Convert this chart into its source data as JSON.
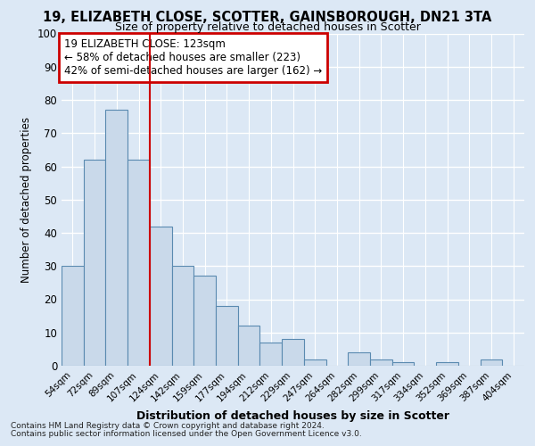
{
  "title1": "19, ELIZABETH CLOSE, SCOTTER, GAINSBOROUGH, DN21 3TA",
  "title2": "Size of property relative to detached houses in Scotter",
  "xlabel": "Distribution of detached houses by size in Scotter",
  "ylabel": "Number of detached properties",
  "footer1": "Contains HM Land Registry data © Crown copyright and database right 2024.",
  "footer2": "Contains public sector information licensed under the Open Government Licence v3.0.",
  "annotation_line1": "19 ELIZABETH CLOSE: 123sqm",
  "annotation_line2": "← 58% of detached houses are smaller (223)",
  "annotation_line3": "42% of semi-detached houses are larger (162) →",
  "bar_labels": [
    "54sqm",
    "72sqm",
    "89sqm",
    "107sqm",
    "124sqm",
    "142sqm",
    "159sqm",
    "177sqm",
    "194sqm",
    "212sqm",
    "229sqm",
    "247sqm",
    "264sqm",
    "282sqm",
    "299sqm",
    "317sqm",
    "334sqm",
    "352sqm",
    "369sqm",
    "387sqm",
    "404sqm"
  ],
  "bar_values": [
    30,
    62,
    77,
    62,
    42,
    30,
    27,
    18,
    12,
    7,
    8,
    2,
    0,
    4,
    2,
    1,
    0,
    1,
    0,
    2,
    0
  ],
  "bar_color": "#c9d9ea",
  "bar_edge_color": "#5a8ab0",
  "vline_x_pos": 3.5,
  "vline_color": "#cc0000",
  "annotation_box_color": "#ffffff",
  "annotation_box_edge_color": "#cc0000",
  "bg_color": "#dce8f5",
  "plot_bg_color": "#dce8f5",
  "grid_color": "#ffffff",
  "ylim": [
    0,
    100
  ],
  "yticks": [
    0,
    10,
    20,
    30,
    40,
    50,
    60,
    70,
    80,
    90,
    100
  ]
}
